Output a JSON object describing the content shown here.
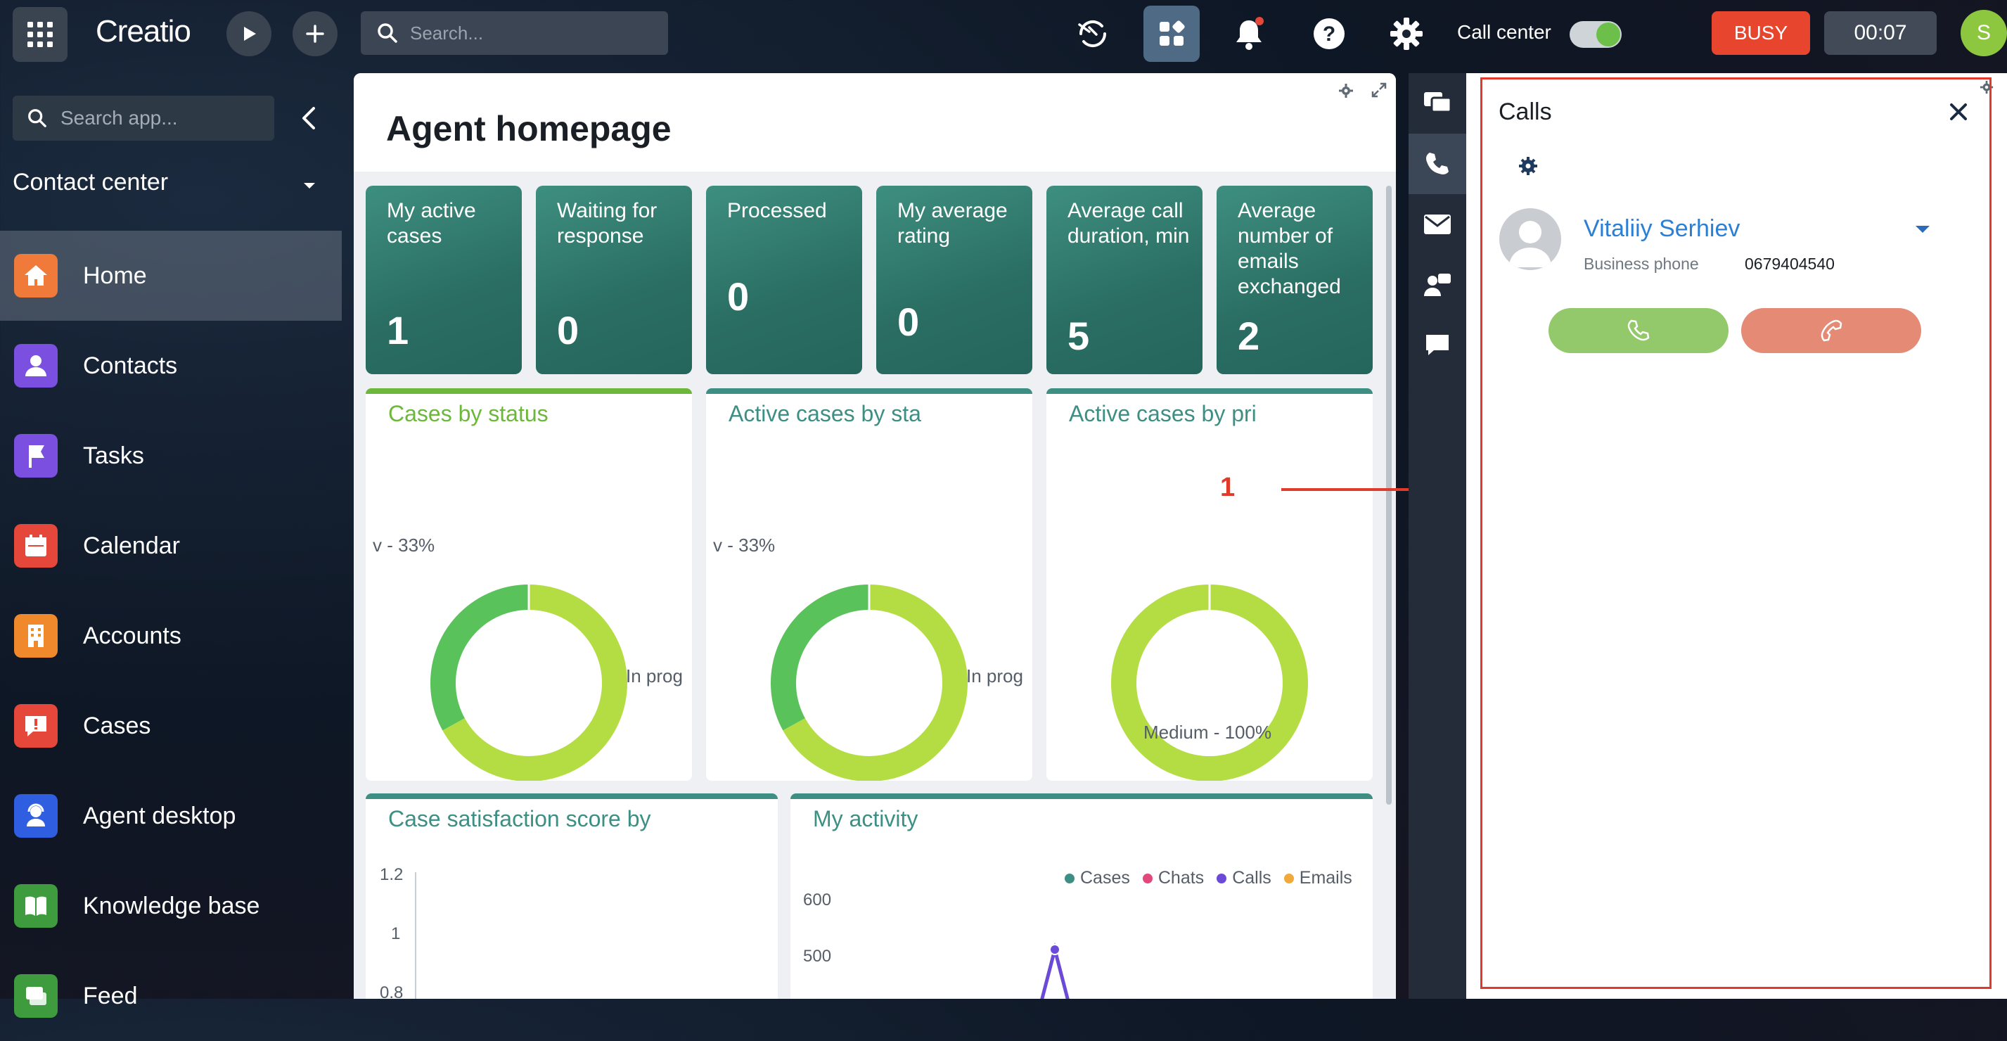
{
  "app": {
    "name": "Creatio",
    "user_initial": "S"
  },
  "topbar": {
    "search_placeholder": "Search...",
    "call_center_label": "Call center",
    "status_label": "BUSY",
    "timer": "00:07"
  },
  "sidebar": {
    "search_placeholder": "Search app...",
    "workplace": "Contact center",
    "items": [
      {
        "label": "Home",
        "icon": "home-icon",
        "color": "#f07a3a"
      },
      {
        "label": "Contacts",
        "icon": "person-icon",
        "color": "#7b4fe0"
      },
      {
        "label": "Tasks",
        "icon": "flag-icon",
        "color": "#7b4fe0"
      },
      {
        "label": "Calendar",
        "icon": "calendar-icon",
        "color": "#e5483b"
      },
      {
        "label": "Accounts",
        "icon": "building-icon",
        "color": "#f0892c"
      },
      {
        "label": "Cases",
        "icon": "alert-icon",
        "color": "#e5483b"
      },
      {
        "label": "Agent desktop",
        "icon": "agent-icon",
        "color": "#2f5fe0"
      },
      {
        "label": "Knowledge base",
        "icon": "book-icon",
        "color": "#3e9b3e"
      },
      {
        "label": "Feed",
        "icon": "feed-icon",
        "color": "#3e9b3e"
      }
    ]
  },
  "page": {
    "title": "Agent homepage"
  },
  "kpis": [
    {
      "title": "My active cases",
      "value": "1"
    },
    {
      "title": "Waiting for response",
      "value": "0"
    },
    {
      "title": "Processed",
      "value": "0"
    },
    {
      "title": "My average rating",
      "value": "0"
    },
    {
      "title": "Average call duration, min",
      "value": "5"
    },
    {
      "title": "Average number of emails exchanged",
      "value": "2"
    }
  ],
  "cards": {
    "status": {
      "title": "Cases by status",
      "label_a": "v - 33%",
      "label_b": "In prog"
    },
    "active_status": {
      "title": "Active cases by sta",
      "label_a": "v - 33%",
      "label_b": "In prog"
    },
    "priority": {
      "title": "Active cases by pri",
      "label_a": "Medium - 100%"
    },
    "satisfaction": {
      "title": "Case satisfaction score by",
      "ticks": [
        "1.2",
        "1",
        "0.8"
      ]
    },
    "activity": {
      "title": "My activity",
      "ticks": [
        "600",
        "500"
      ]
    }
  },
  "chart_data": [
    {
      "type": "pie",
      "title": "Cases by status",
      "labels": [
        "v",
        "In prog"
      ],
      "values": [
        33,
        67
      ],
      "colors": [
        "#5ac25a",
        "#b4dd44"
      ]
    },
    {
      "type": "pie",
      "title": "Active cases by sta",
      "labels": [
        "v",
        "In prog"
      ],
      "values": [
        33,
        67
      ],
      "colors": [
        "#5ac25a",
        "#b4dd44"
      ]
    },
    {
      "type": "pie",
      "title": "Active cases by pri",
      "labels": [
        "Medium"
      ],
      "values": [
        100
      ],
      "colors": [
        "#b4dd44"
      ]
    },
    {
      "type": "line",
      "title": "My activity",
      "series": [
        {
          "name": "Cases",
          "color": "#3d8f84"
        },
        {
          "name": "Chats",
          "color": "#e2477e"
        },
        {
          "name": "Calls",
          "color": "#6c4ad8"
        },
        {
          "name": "Emails",
          "color": "#f0a93a"
        }
      ],
      "ylim": [
        500,
        600
      ]
    }
  ],
  "annotation": {
    "label": "1"
  },
  "calls": {
    "title": "Calls",
    "contact_name": "Vitaliiy Serhiev",
    "phone_type": "Business phone",
    "phone_number": "0679404540"
  }
}
